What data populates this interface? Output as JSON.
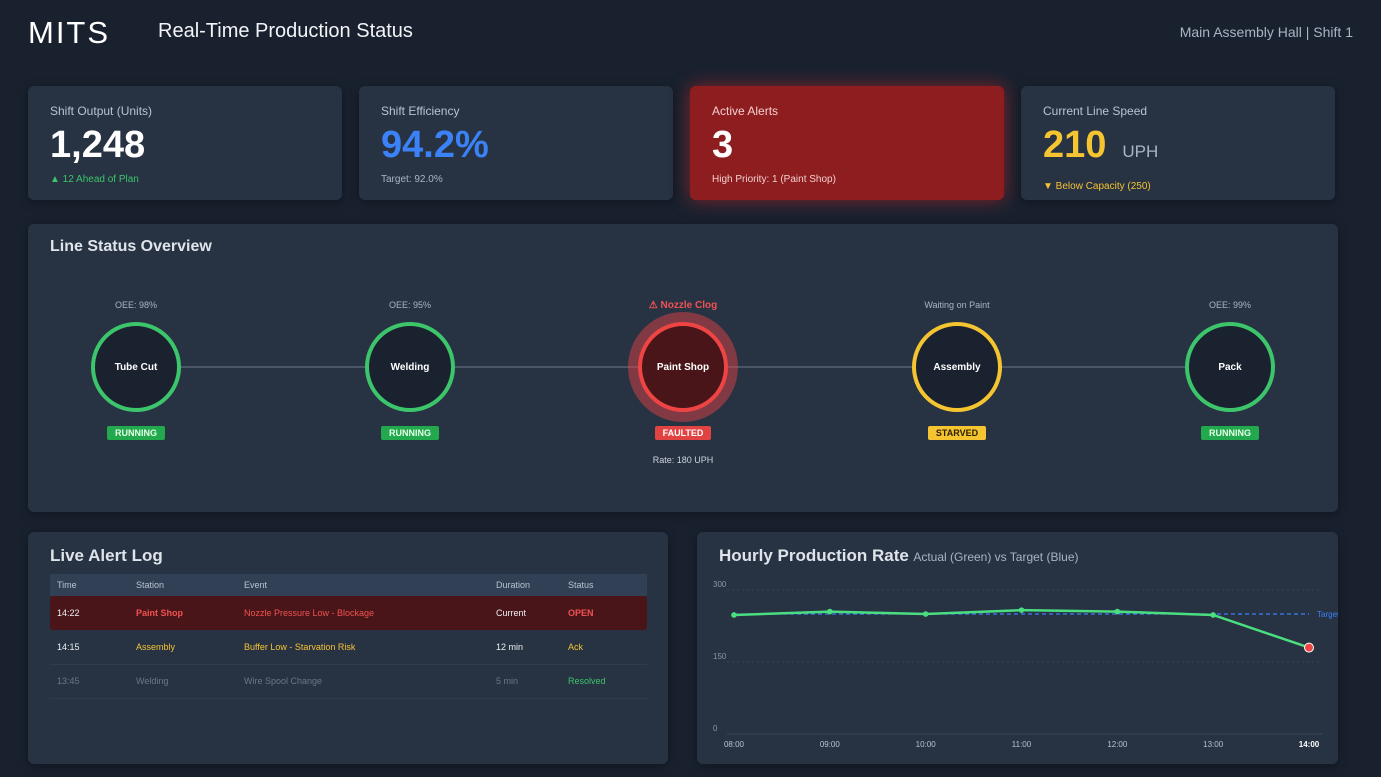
{
  "header": {
    "logo_text": "MITS",
    "title": "Real-Time Production Status",
    "location": "Main Assembly Hall | Shift 1"
  },
  "kpis": {
    "output": {
      "label": "Shift Output (Units)",
      "value": "1,248",
      "sub": "▲ 12 Ahead of Plan",
      "color": "#3cc56a"
    },
    "efficiency": {
      "label": "Shift Efficiency",
      "value": "94.2%",
      "sub": "Target: 92.0%",
      "color": "#3b82f6"
    },
    "alerts": {
      "label": "Active Alerts",
      "value": "3",
      "sub": "High Priority: 1 (Paint Shop)",
      "color": "#8e1d1f"
    },
    "speed": {
      "label": "Current Line Speed",
      "value": "210",
      "unit": "UPH",
      "sub": "▼ Below Capacity (250)",
      "color": "#f5c431"
    }
  },
  "line": {
    "title": "Line Status Overview",
    "stations": [
      {
        "name": "Tube Cut",
        "top": "OEE: 98%",
        "status": "RUNNING"
      },
      {
        "name": "Welding",
        "top": "OEE: 95%",
        "status": "RUNNING"
      },
      {
        "name": "Paint Shop",
        "top": "⚠ Nozzle Clog",
        "status": "FAULTED",
        "rate": "Rate: 180 UPH"
      },
      {
        "name": "Assembly",
        "top": "Waiting on Paint",
        "status": "STARVED"
      },
      {
        "name": "Pack",
        "top": "OEE: 99%",
        "status": "RUNNING"
      }
    ]
  },
  "log": {
    "title": "Live Alert Log",
    "columns": [
      "Time",
      "Station",
      "Event",
      "Duration",
      "Status"
    ],
    "rows": [
      {
        "time": "14:22",
        "station": "Paint Shop",
        "event": "Nozzle Pressure Low - Blockage",
        "duration": "Current",
        "status": "OPEN"
      },
      {
        "time": "14:15",
        "station": "Assembly",
        "event": "Buffer Low - Starvation Risk",
        "duration": "12 min",
        "status": "Ack"
      },
      {
        "time": "13:45",
        "station": "Welding",
        "event": "Wire Spool Change",
        "duration": "5 min",
        "status": "Resolved"
      }
    ]
  },
  "chart_data": {
    "type": "line",
    "title": "Hourly Production Rate",
    "subtitle": "Actual (Green) vs Target (Blue)",
    "x": [
      "08:00",
      "09:00",
      "10:00",
      "11:00",
      "12:00",
      "13:00",
      "14:00"
    ],
    "series": [
      {
        "values": [
          248,
          255,
          250,
          258,
          255,
          248,
          180
        ],
        "color": "#4ade80"
      },
      {
        "name": "Target",
        "values": [
          250,
          250,
          250,
          250,
          250,
          250,
          250
        ],
        "color": "#3b82f6"
      }
    ],
    "yticks": [
      "0",
      "150",
      "300"
    ],
    "ylim": [
      0,
      300
    ]
  }
}
